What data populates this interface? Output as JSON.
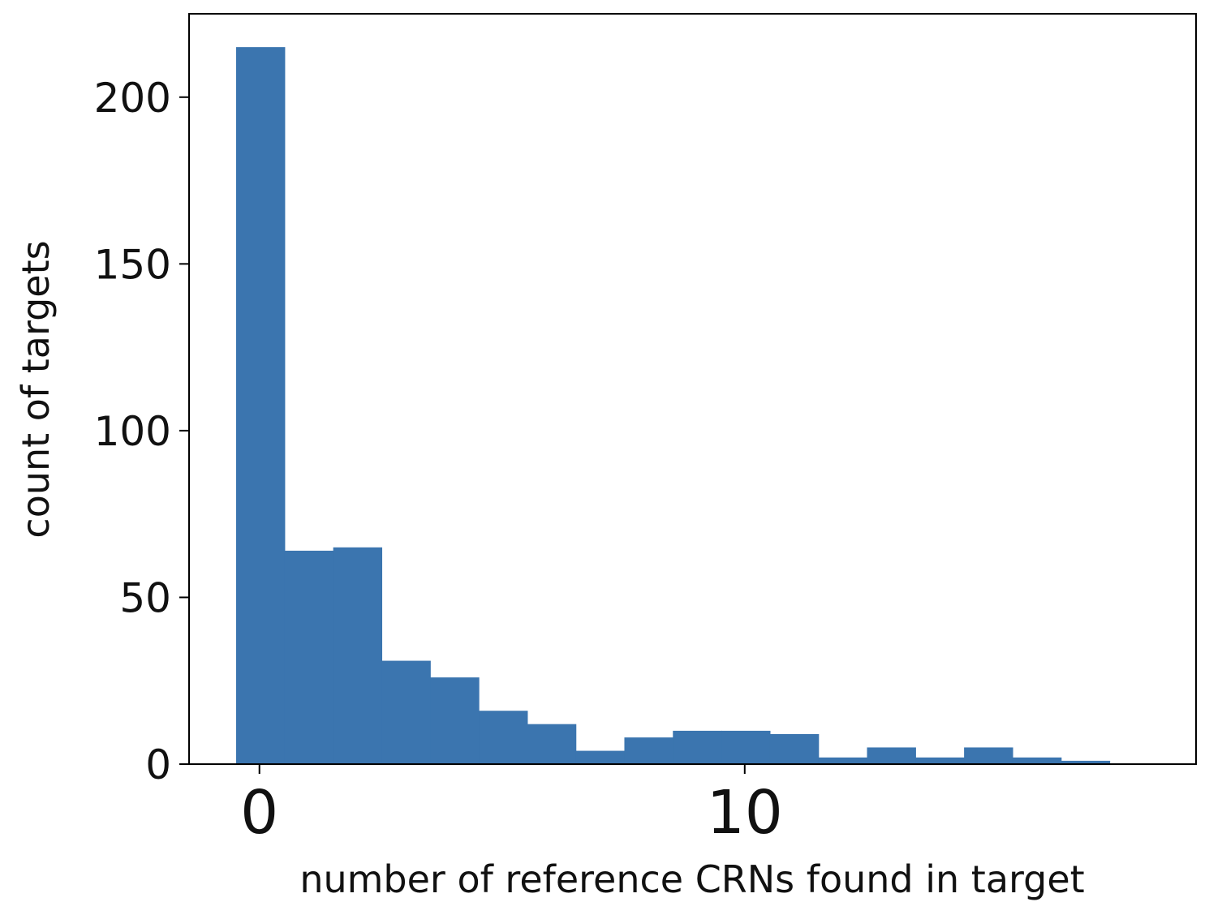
{
  "chart_data": {
    "type": "bar",
    "xlabel": "number of reference CRNs found in target",
    "ylabel": "count of targets",
    "bin_edges": [
      -0.48,
      0.52,
      1.52,
      2.52,
      3.52,
      4.52,
      5.52,
      6.52,
      7.52,
      8.52,
      9.52,
      10.52,
      11.52,
      12.52,
      13.52,
      14.52,
      15.52,
      16.52,
      17.52
    ],
    "values": [
      215,
      64,
      65,
      31,
      26,
      16,
      12,
      4,
      8,
      10,
      10,
      9,
      2,
      5,
      2,
      5,
      2,
      1
    ],
    "xlim": [
      -1.45,
      19.3
    ],
    "ylim": [
      0,
      225
    ],
    "x_ticks": [
      {
        "value": 0,
        "label": "0"
      },
      {
        "value": 10,
        "label": "10"
      }
    ],
    "y_ticks": [
      {
        "value": 0,
        "label": "0"
      },
      {
        "value": 50,
        "label": "50"
      },
      {
        "value": 100,
        "label": "100"
      },
      {
        "value": 150,
        "label": "150"
      },
      {
        "value": 200,
        "label": "200"
      }
    ],
    "bar_color": "#3b75af",
    "grid": false
  }
}
